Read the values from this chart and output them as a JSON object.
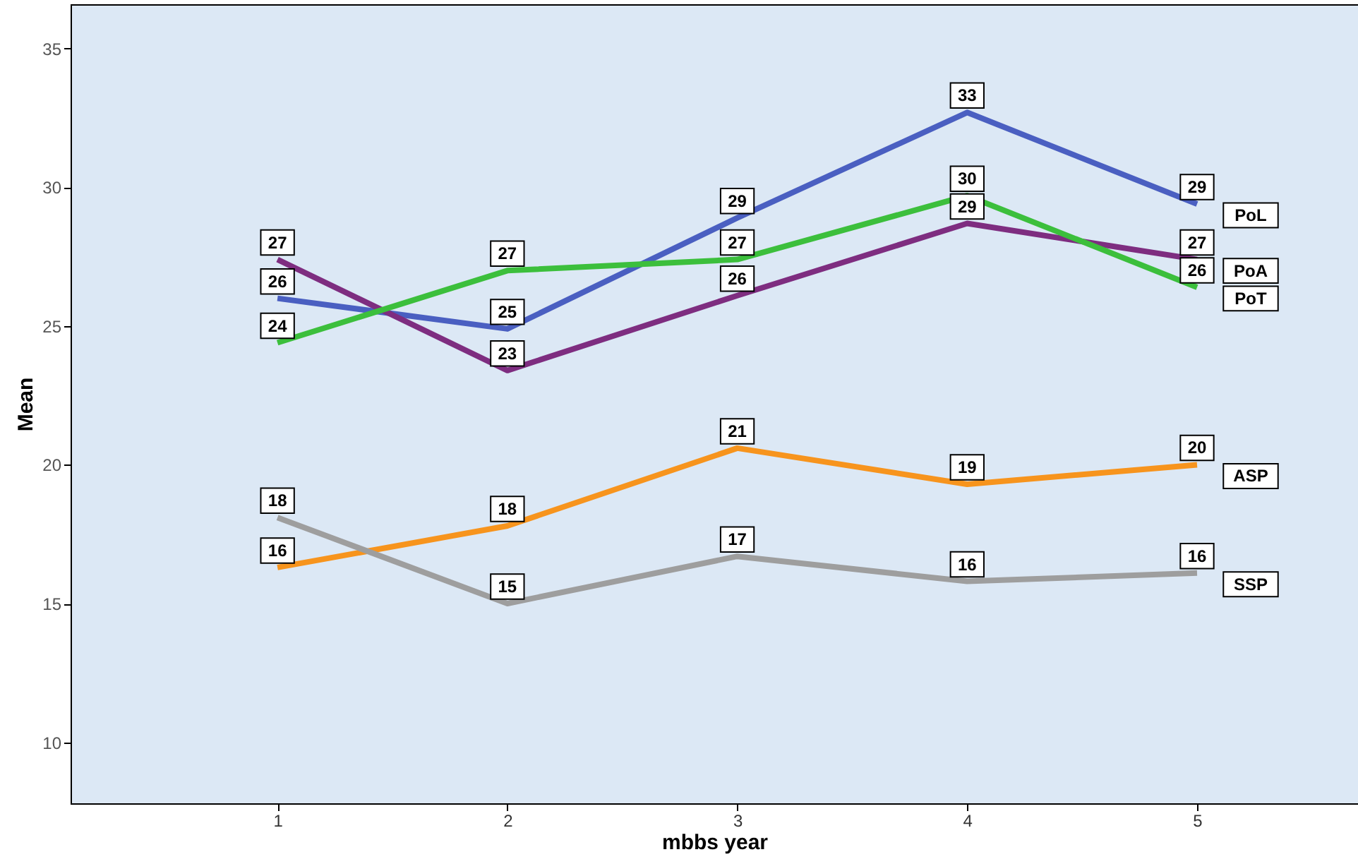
{
  "chart_data": {
    "type": "line",
    "xlabel": "mbbs year",
    "ylabel": "Mean",
    "x": [
      1,
      2,
      3,
      4,
      5
    ],
    "xlim": [
      0.1,
      5.7
    ],
    "xticks": [
      1,
      2,
      3,
      4,
      5
    ],
    "ylim": [
      7.8,
      36.6
    ],
    "yticks": [
      10,
      15,
      20,
      25,
      30,
      35
    ],
    "grid": false,
    "marker": "none",
    "line_style": "solid",
    "series": [
      {
        "name": "PoL",
        "color": "#4a5fc1",
        "values": [
          26.0,
          24.9,
          28.9,
          32.7,
          29.4
        ],
        "value_labels": [
          "26",
          "25",
          "29",
          "33",
          "29"
        ]
      },
      {
        "name": "PoA",
        "color": "#7e2d80",
        "values": [
          27.4,
          23.4,
          26.1,
          28.7,
          27.4
        ],
        "value_labels": [
          "27",
          "23",
          "26",
          "29",
          "27"
        ]
      },
      {
        "name": "PoT",
        "color": "#3cbf3c",
        "values": [
          24.4,
          27.0,
          27.4,
          29.7,
          26.4
        ],
        "value_labels": [
          "24",
          "27",
          "27",
          "30",
          "26"
        ]
      },
      {
        "name": "ASP",
        "color": "#f7941d",
        "values": [
          16.3,
          17.8,
          20.6,
          19.3,
          20.0
        ],
        "value_labels": [
          "16",
          "18",
          "21",
          "19",
          "20"
        ]
      },
      {
        "name": "SSP",
        "color": "#9e9e9e",
        "values": [
          18.1,
          15.0,
          16.7,
          15.8,
          16.1
        ],
        "value_labels": [
          "18",
          "15",
          "17",
          "16",
          "16"
        ]
      }
    ]
  }
}
